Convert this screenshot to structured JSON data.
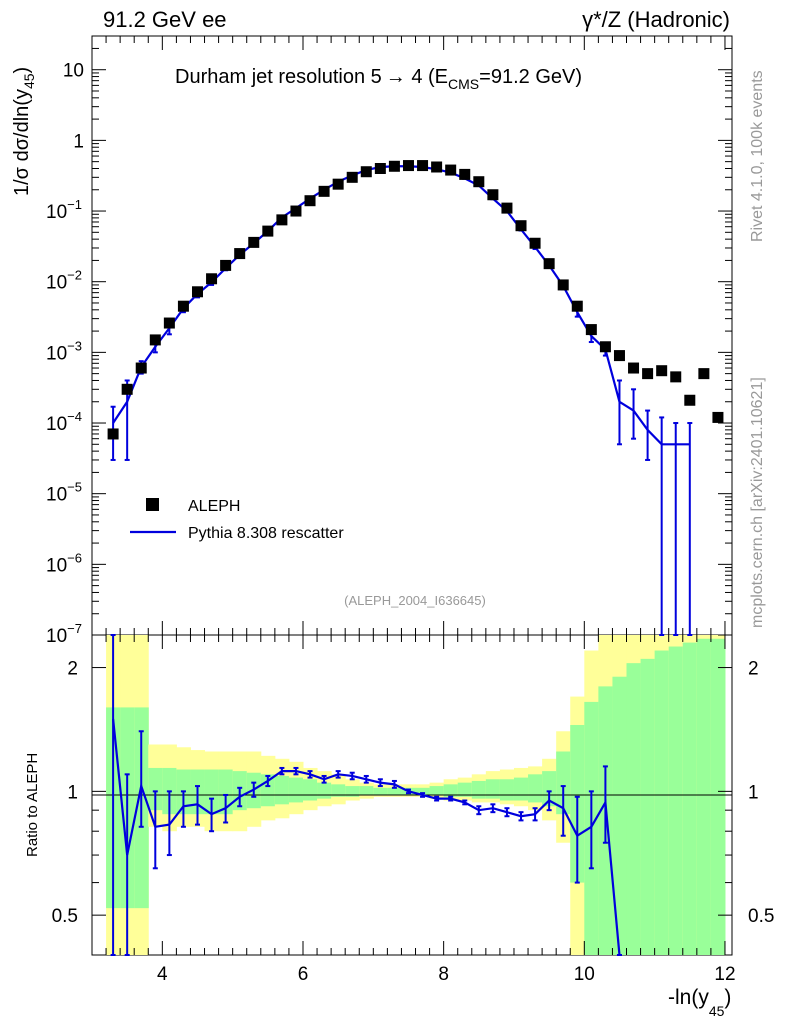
{
  "header": {
    "left": "91.2 GeV ee",
    "right": "γ*/Z (Hadronic)"
  },
  "title": {
    "main": "Durham jet resolution 5",
    "arrow": "→",
    "mid": "  4 (E",
    "sub": "CMS",
    "tail": "=91.2 GeV)"
  },
  "side_text": {
    "rivet": "Rivet 4.1.0,  100k events",
    "mcplots": "mcplots.cern.ch [arXiv:2401.10621]"
  },
  "watermark": "(ALEPH_2004_I636645)",
  "axes": {
    "ylabel_main": "1/σ  dσ/dln(y",
    "ylabel_sub": "45",
    "ylabel_close": ")",
    "ylabel_ratio": "Ratio to ALEPH",
    "xlabel": "-ln(y",
    "xlabel_sub": "45",
    "xlabel_close": ")"
  },
  "legend": {
    "data_label": "ALEPH",
    "mc_label": "Pythia 8.308 rescatter"
  },
  "colors": {
    "data": "#000000",
    "mc": "#0000dd",
    "band_outer": "#ffff99",
    "band_inner": "#99ff99"
  },
  "chart_data": {
    "type": "scatter",
    "title": "Durham jet resolution 5 → 4 (E_CMS=91.2 GeV)",
    "xlabel": "-ln(y45)",
    "ylabel": "1/σ dσ/dln(y45)",
    "xlim": [
      3.0,
      12.1
    ],
    "ylim": [
      1e-07,
      30
    ],
    "yscale": "log",
    "x_ticks": [
      4,
      6,
      8,
      10,
      12
    ],
    "y_ticks": [
      {
        "v": 1e-07,
        "b": "10",
        "e": "−7"
      },
      {
        "v": 1e-06,
        "b": "10",
        "e": "−6"
      },
      {
        "v": 1e-05,
        "b": "10",
        "e": "−5"
      },
      {
        "v": 0.0001,
        "b": "10",
        "e": "−4"
      },
      {
        "v": 0.001,
        "b": "10",
        "e": "−3"
      },
      {
        "v": 0.01,
        "b": "10",
        "e": "−2"
      },
      {
        "v": 0.1,
        "b": "10",
        "e": "−1"
      },
      {
        "v": 1,
        "b": "1",
        "e": ""
      },
      {
        "v": 10,
        "b": "10",
        "e": ""
      }
    ],
    "data_series": {
      "name": "ALEPH",
      "x": [
        3.3,
        3.5,
        3.7,
        3.9,
        4.1,
        4.3,
        4.5,
        4.7,
        4.9,
        5.1,
        5.3,
        5.5,
        5.7,
        5.9,
        6.1,
        6.3,
        6.5,
        6.7,
        6.9,
        7.1,
        7.3,
        7.5,
        7.7,
        7.9,
        8.1,
        8.3,
        8.5,
        8.7,
        8.9,
        9.1,
        9.3,
        9.5,
        9.7,
        9.9,
        10.1,
        10.3,
        10.5,
        10.7,
        10.9,
        11.1,
        11.3,
        11.5,
        11.7,
        11.9
      ],
      "y": [
        7e-05,
        0.0003,
        0.0006,
        0.0015,
        0.0026,
        0.0045,
        0.0072,
        0.011,
        0.017,
        0.025,
        0.036,
        0.052,
        0.075,
        0.1,
        0.14,
        0.19,
        0.24,
        0.3,
        0.36,
        0.4,
        0.43,
        0.44,
        0.44,
        0.42,
        0.38,
        0.33,
        0.26,
        0.17,
        0.11,
        0.062,
        0.035,
        0.018,
        0.009,
        0.0045,
        0.0021,
        0.0012,
        0.0009,
        0.0006,
        0.0005,
        0.00055,
        0.00045,
        0.00021,
        0.0005,
        0.00012
      ]
    },
    "mc_series": {
      "name": "Pythia 8.308 rescatter",
      "x": [
        3.3,
        3.5,
        3.7,
        3.9,
        4.1,
        4.3,
        4.5,
        4.7,
        4.9,
        5.1,
        5.3,
        5.5,
        5.7,
        5.9,
        6.1,
        6.3,
        6.5,
        6.7,
        6.9,
        7.1,
        7.3,
        7.5,
        7.7,
        7.9,
        8.1,
        8.3,
        8.5,
        8.7,
        8.9,
        9.1,
        9.3,
        9.5,
        9.7,
        9.9,
        10.1,
        10.3,
        10.5,
        10.7,
        10.9,
        11.1,
        11.3,
        11.5
      ],
      "y": [
        0.0001,
        0.0002,
        0.00062,
        0.0012,
        0.0022,
        0.0042,
        0.0067,
        0.0098,
        0.0155,
        0.024,
        0.035,
        0.052,
        0.081,
        0.11,
        0.15,
        0.2,
        0.26,
        0.32,
        0.38,
        0.42,
        0.43,
        0.43,
        0.42,
        0.39,
        0.35,
        0.29,
        0.23,
        0.15,
        0.1,
        0.055,
        0.031,
        0.017,
        0.0087,
        0.0037,
        0.0017,
        0.0011,
        0.0002,
        0.00015,
        8e-05,
        5e-05,
        5e-05,
        5e-05
      ],
      "err_lo": [
        3e-05,
        3e-05,
        0.0005,
        0.001,
        0.0018,
        0.0037,
        0.006,
        0.009,
        0.0145,
        0.0225,
        0.033,
        0.05,
        0.078,
        0.107,
        0.147,
        0.196,
        0.256,
        0.316,
        0.376,
        0.416,
        0.426,
        0.426,
        0.416,
        0.386,
        0.346,
        0.286,
        0.226,
        0.147,
        0.097,
        0.053,
        0.029,
        0.0158,
        0.0078,
        0.0032,
        0.0014,
        0.0009,
        5e-05,
        6e-05,
        3e-05,
        1e-08,
        1e-08,
        1e-08
      ],
      "err_hi": [
        0.00017,
        0.0004,
        0.00075,
        0.0014,
        0.0026,
        0.0047,
        0.0074,
        0.0106,
        0.0165,
        0.0255,
        0.037,
        0.054,
        0.084,
        0.113,
        0.153,
        0.204,
        0.264,
        0.324,
        0.384,
        0.424,
        0.434,
        0.434,
        0.424,
        0.394,
        0.354,
        0.294,
        0.234,
        0.153,
        0.103,
        0.057,
        0.033,
        0.0182,
        0.0096,
        0.0042,
        0.002,
        0.0013,
        0.0004,
        0.0003,
        0.00015,
        0.00012,
        0.0001,
        0.0001
      ]
    },
    "ratio": {
      "ylabel": "Ratio to ALEPH",
      "ylim": [
        0.4,
        2.4
      ],
      "yscale": "log",
      "y_ticks": [
        0.5,
        1,
        2
      ],
      "y_tick_labels": [
        "0.5",
        "1",
        "2"
      ],
      "bins": [
        3.2,
        3.4,
        3.6,
        3.8,
        4.0,
        4.2,
        4.4,
        4.6,
        4.8,
        5.0,
        5.2,
        5.4,
        5.6,
        5.8,
        6.0,
        6.2,
        6.4,
        6.6,
        6.8,
        7.0,
        7.2,
        7.4,
        7.6,
        7.8,
        8.0,
        8.2,
        8.4,
        8.6,
        8.8,
        9.0,
        9.2,
        9.4,
        9.6,
        9.8,
        10.0,
        10.2,
        10.4,
        10.6,
        10.8,
        11.0,
        11.2,
        11.4,
        11.6,
        11.8,
        12.0
      ],
      "band_outer_lo": [
        0.38,
        0.38,
        0.38,
        0.82,
        0.8,
        0.82,
        0.82,
        0.8,
        0.8,
        0.8,
        0.82,
        0.85,
        0.86,
        0.88,
        0.9,
        0.92,
        0.93,
        0.95,
        0.96,
        0.97,
        0.97,
        0.97,
        0.97,
        0.96,
        0.95,
        0.95,
        0.94,
        0.94,
        0.93,
        0.92,
        0.9,
        0.85,
        0.75,
        0.4,
        0.4,
        0.4,
        0.4,
        0.4,
        0.4,
        0.4,
        0.4,
        0.4,
        0.4,
        0.4
      ],
      "band_outer_hi": [
        2.4,
        2.4,
        2.4,
        1.3,
        1.3,
        1.28,
        1.26,
        1.25,
        1.25,
        1.25,
        1.25,
        1.22,
        1.2,
        1.18,
        1.14,
        1.12,
        1.1,
        1.07,
        1.05,
        1.04,
        1.04,
        1.04,
        1.04,
        1.05,
        1.07,
        1.08,
        1.1,
        1.12,
        1.13,
        1.14,
        1.15,
        1.2,
        1.4,
        1.7,
        2.2,
        2.4,
        2.4,
        2.4,
        2.4,
        2.4,
        2.4,
        2.4,
        2.4,
        2.4
      ],
      "band_inner_lo": [
        0.52,
        0.52,
        0.52,
        0.9,
        0.88,
        0.88,
        0.88,
        0.88,
        0.88,
        0.9,
        0.91,
        0.92,
        0.93,
        0.94,
        0.95,
        0.96,
        0.97,
        0.97,
        0.98,
        0.98,
        0.98,
        0.98,
        0.98,
        0.98,
        0.97,
        0.97,
        0.96,
        0.96,
        0.95,
        0.95,
        0.94,
        0.92,
        0.88,
        0.6,
        0.4,
        0.4,
        0.4,
        0.4,
        0.4,
        0.4,
        0.4,
        0.4,
        0.4,
        0.4
      ],
      "band_inner_hi": [
        1.6,
        1.6,
        1.6,
        1.14,
        1.14,
        1.13,
        1.13,
        1.13,
        1.13,
        1.12,
        1.11,
        1.1,
        1.09,
        1.08,
        1.07,
        1.05,
        1.04,
        1.03,
        1.03,
        1.02,
        1.02,
        1.02,
        1.02,
        1.03,
        1.04,
        1.05,
        1.06,
        1.07,
        1.07,
        1.08,
        1.1,
        1.12,
        1.25,
        1.45,
        1.65,
        1.8,
        1.9,
        2.05,
        2.1,
        2.2,
        2.25,
        2.3,
        2.35,
        2.35
      ],
      "mc": {
        "x": [
          3.3,
          3.5,
          3.7,
          3.9,
          4.1,
          4.3,
          4.5,
          4.7,
          4.9,
          5.1,
          5.3,
          5.5,
          5.7,
          5.9,
          6.1,
          6.3,
          6.5,
          6.7,
          6.9,
          7.1,
          7.3,
          7.5,
          7.7,
          7.9,
          8.1,
          8.3,
          8.5,
          8.7,
          8.9,
          9.1,
          9.3,
          9.5,
          9.7,
          9.9,
          10.1,
          10.3,
          10.5
        ],
        "y": [
          1.5,
          0.7,
          1.03,
          0.82,
          0.83,
          0.92,
          0.93,
          0.88,
          0.91,
          0.97,
          1.01,
          1.06,
          1.12,
          1.12,
          1.1,
          1.07,
          1.1,
          1.09,
          1.07,
          1.05,
          1.04,
          1.0,
          0.98,
          0.96,
          0.96,
          0.94,
          0.9,
          0.91,
          0.89,
          0.87,
          0.88,
          0.95,
          0.91,
          0.78,
          0.82,
          0.94,
          0.3
        ],
        "err_lo": [
          0.37,
          0.37,
          0.82,
          0.65,
          0.7,
          0.82,
          0.83,
          0.8,
          0.84,
          0.92,
          0.97,
          1.03,
          1.1,
          1.1,
          1.08,
          1.05,
          1.08,
          1.07,
          1.05,
          1.03,
          1.02,
          0.99,
          0.97,
          0.95,
          0.95,
          0.93,
          0.88,
          0.89,
          0.87,
          0.85,
          0.85,
          0.9,
          0.78,
          0.6,
          0.65,
          0.75,
          0.3
        ],
        "err_hi": [
          2.6,
          1.1,
          1.4,
          1.0,
          1.0,
          1.0,
          1.03,
          0.96,
          0.98,
          1.02,
          1.05,
          1.09,
          1.14,
          1.14,
          1.12,
          1.09,
          1.12,
          1.11,
          1.09,
          1.07,
          1.06,
          1.01,
          0.99,
          0.97,
          0.97,
          0.95,
          0.92,
          0.93,
          0.91,
          0.89,
          0.91,
          1.0,
          1.03,
          0.97,
          1.0,
          1.15,
          0.3
        ]
      }
    }
  }
}
